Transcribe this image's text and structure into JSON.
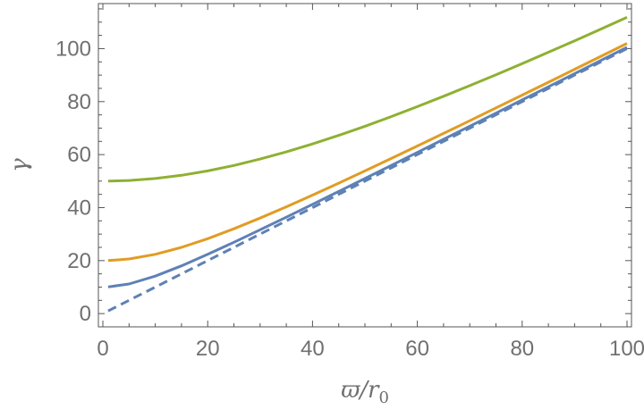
{
  "chart_data": {
    "type": "line",
    "title": "",
    "xlabel": {
      "main": "ϖ/r",
      "sub": "0"
    },
    "ylabel": "γ",
    "xlim": [
      0,
      100
    ],
    "ylim": [
      -5,
      117
    ],
    "xticks": [
      0,
      20,
      40,
      60,
      80,
      100
    ],
    "yticks": [
      0,
      20,
      40,
      60,
      80,
      100
    ],
    "grid": false,
    "legend": "none",
    "x": [
      1,
      5,
      10,
      15,
      20,
      25,
      30,
      35,
      40,
      45,
      50,
      55,
      60,
      65,
      70,
      75,
      80,
      85,
      90,
      95,
      100
    ],
    "series": [
      {
        "color": "#5e81b5",
        "dash": "solid",
        "values": [
          10.05,
          11.18,
          14.14,
          18.03,
          22.36,
          26.93,
          31.62,
          36.4,
          41.23,
          46.1,
          50.99,
          55.9,
          60.83,
          65.76,
          70.71,
          75.66,
          80.62,
          85.59,
          90.55,
          95.52,
          100.5
        ]
      },
      {
        "color": "#e19c24",
        "dash": "solid",
        "values": [
          20.02,
          20.62,
          22.36,
          25.0,
          28.28,
          32.02,
          36.06,
          40.31,
          44.72,
          49.24,
          53.85,
          58.52,
          63.25,
          68.01,
          72.8,
          77.62,
          82.46,
          87.32,
          92.2,
          97.08,
          101.98
        ]
      },
      {
        "color": "#8fb032",
        "dash": "solid",
        "values": [
          50.01,
          50.25,
          50.99,
          52.2,
          53.85,
          55.9,
          58.31,
          61.03,
          64.03,
          67.27,
          70.71,
          74.33,
          78.1,
          82.01,
          86.02,
          90.14,
          94.34,
          98.62,
          102.96,
          107.36,
          111.8
        ]
      },
      {
        "color": "#5e81b5",
        "dash": "dashed",
        "values": [
          1,
          5,
          10,
          15,
          20,
          25,
          30,
          35,
          40,
          45,
          50,
          55,
          60,
          65,
          70,
          75,
          80,
          85,
          90,
          95,
          100
        ]
      }
    ]
  }
}
